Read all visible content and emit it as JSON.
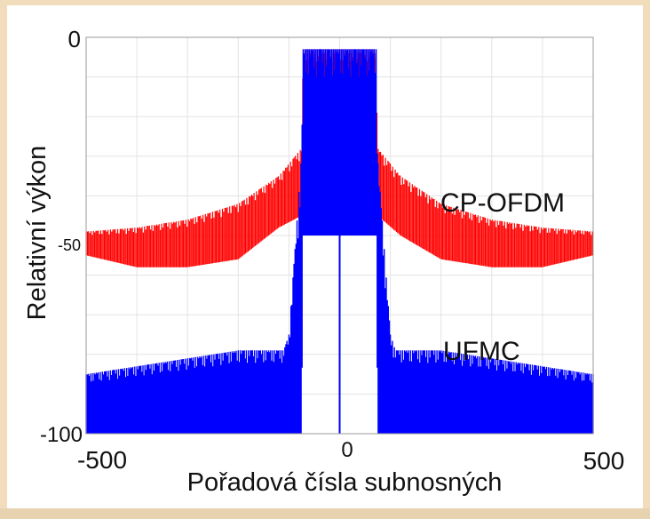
{
  "chart_data": {
    "type": "line",
    "title": "",
    "xlabel": "Pořadová čísla subnosných",
    "ylabel": "Relativní výkon",
    "xlim": [
      -500,
      500
    ],
    "ylim": [
      -100,
      0
    ],
    "grid": true,
    "x_ticks": [
      {
        "value": -500,
        "label": "-500"
      },
      {
        "value": 0,
        "label": "0"
      },
      {
        "value": 500,
        "label": "500"
      }
    ],
    "y_ticks": [
      {
        "value": 0,
        "label": "0"
      },
      {
        "value": -50,
        "label": "-50"
      },
      {
        "value": -100,
        "label": "-100"
      }
    ],
    "series": [
      {
        "name": "CP-OFDM",
        "color": "#ff0000",
        "envelope_upper": [
          [
            -500,
            -49
          ],
          [
            -400,
            -48
          ],
          [
            -300,
            -46
          ],
          [
            -200,
            -42
          ],
          [
            -120,
            -35
          ],
          [
            -75,
            -28
          ],
          [
            -72,
            -4
          ],
          [
            72,
            -4
          ],
          [
            75,
            -28
          ],
          [
            120,
            -35
          ],
          [
            200,
            -42
          ],
          [
            300,
            -46
          ],
          [
            400,
            -48
          ],
          [
            500,
            -49
          ]
        ],
        "envelope_lower": [
          [
            -500,
            -55
          ],
          [
            -400,
            -58
          ],
          [
            -300,
            -58
          ],
          [
            -200,
            -56
          ],
          [
            -120,
            -48
          ],
          [
            -75,
            -45
          ],
          [
            -72,
            -18
          ],
          [
            72,
            -18
          ],
          [
            75,
            -45
          ],
          [
            120,
            -50
          ],
          [
            200,
            -56
          ],
          [
            300,
            -58
          ],
          [
            400,
            -58
          ],
          [
            500,
            -55
          ]
        ]
      },
      {
        "name": "UFMC",
        "color": "#0000ff",
        "envelope_upper": [
          [
            -500,
            -85
          ],
          [
            -400,
            -83
          ],
          [
            -300,
            -81
          ],
          [
            -200,
            -79
          ],
          [
            -110,
            -79
          ],
          [
            -100,
            -75
          ],
          [
            -75,
            -30
          ],
          [
            -72,
            -3
          ],
          [
            72,
            -3
          ],
          [
            75,
            -30
          ],
          [
            100,
            -75
          ],
          [
            110,
            -79
          ],
          [
            200,
            -79
          ],
          [
            300,
            -81
          ],
          [
            400,
            -83
          ],
          [
            500,
            -85
          ]
        ],
        "envelope_lower": [
          [
            -500,
            -100
          ],
          [
            -75,
            -100
          ],
          [
            -72,
            -50
          ],
          [
            72,
            -50
          ],
          [
            75,
            -100
          ],
          [
            500,
            -100
          ]
        ],
        "notch": {
          "x": 0,
          "bottom": -100
        }
      }
    ],
    "annotations": [
      "CP-OFDM",
      "UFMC"
    ]
  }
}
